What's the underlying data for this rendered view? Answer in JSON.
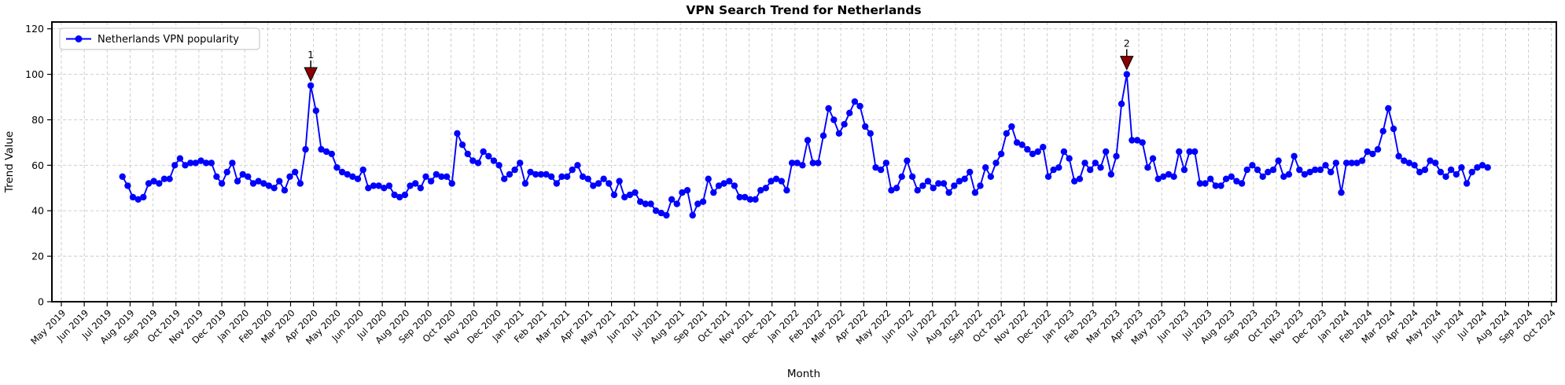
{
  "title": "VPN Search Trend for Netherlands",
  "xlabel": "Month",
  "ylabel": "Trend Value",
  "legend": {
    "label": "Netherlands VPN popularity"
  },
  "colors": {
    "line": "#0000ff",
    "marker": "#0000ff",
    "annotation": "#8b0000",
    "grid": "#c9c9c9",
    "spine": "#000000",
    "background": "#ffffff"
  },
  "chart_data": {
    "type": "line",
    "title": "VPN Search Trend for Netherlands",
    "xlabel": "Month",
    "ylabel": "Trend Value",
    "ylim": [
      0,
      123
    ],
    "yticks": [
      0,
      20,
      40,
      60,
      80,
      100,
      120
    ],
    "grid": true,
    "legend_position": "upper left",
    "x_tick_labels": [
      "May 2019",
      "Jun 2019",
      "Jul 2019",
      "Aug 2019",
      "Sep 2019",
      "Oct 2019",
      "Nov 2019",
      "Dec 2019",
      "Jan 2020",
      "Feb 2020",
      "Mar 2020",
      "Apr 2020",
      "May 2020",
      "Jun 2020",
      "Jul 2020",
      "Aug 2020",
      "Sep 2020",
      "Oct 2020",
      "Nov 2020",
      "Dec 2020",
      "Jan 2021",
      "Feb 2021",
      "Mar 2021",
      "Apr 2021",
      "May 2021",
      "Jun 2021",
      "Jul 2021",
      "Aug 2021",
      "Sep 2021",
      "Oct 2021",
      "Nov 2021",
      "Dec 2021",
      "Jan 2022",
      "Feb 2022",
      "Mar 2022",
      "Apr 2022",
      "May 2022",
      "Jun 2022",
      "Jul 2022",
      "Aug 2022",
      "Sep 2022",
      "Oct 2022",
      "Nov 2022",
      "Dec 2022",
      "Jan 2023",
      "Feb 2023",
      "Mar 2023",
      "Apr 2023",
      "May 2023",
      "Jun 2023",
      "Jul 2023",
      "Aug 2023",
      "Sep 2023",
      "Oct 2023",
      "Nov 2023",
      "Dec 2023",
      "Jan 2024",
      "Feb 2024",
      "Mar 2024",
      "Apr 2024",
      "May 2024",
      "Jun 2024",
      "Jul 2024",
      "Aug 2024",
      "Sep 2024",
      "Oct 2024"
    ],
    "series": [
      {
        "name": "Netherlands VPN popularity",
        "color": "#0000ff",
        "marker": "circle",
        "x_start_label": "Jul 2019",
        "x_end_label": "Jul 2024",
        "frequency": "weekly",
        "values": [
          55,
          51,
          46,
          45,
          46,
          52,
          53,
          52,
          54,
          54,
          60,
          63,
          60,
          61,
          61,
          62,
          61,
          61,
          55,
          52,
          57,
          61,
          53,
          56,
          55,
          52,
          53,
          52,
          51,
          50,
          53,
          49,
          55,
          57,
          52,
          67,
          95,
          84,
          67,
          66,
          65,
          59,
          57,
          56,
          55,
          54,
          58,
          50,
          51,
          51,
          50,
          51,
          47,
          46,
          47,
          51,
          52,
          50,
          55,
          53,
          56,
          55,
          55,
          52,
          74,
          69,
          65,
          62,
          61,
          66,
          64,
          62,
          60,
          54,
          56,
          58,
          61,
          52,
          57,
          56,
          56,
          56,
          55,
          52,
          55,
          55,
          58,
          60,
          55,
          54,
          51,
          52,
          54,
          52,
          47,
          53,
          46,
          47,
          48,
          44,
          43,
          43,
          40,
          39,
          38,
          45,
          43,
          48,
          49,
          38,
          43,
          44,
          54,
          48,
          51,
          52,
          53,
          51,
          46,
          46,
          45,
          45,
          49,
          50,
          53,
          54,
          53,
          49,
          61,
          61,
          60,
          71,
          61,
          61,
          73,
          85,
          80,
          74,
          78,
          83,
          88,
          86,
          77,
          74,
          59,
          58,
          61,
          49,
          50,
          55,
          62,
          55,
          49,
          51,
          53,
          50,
          52,
          52,
          48,
          51,
          53,
          54,
          57,
          48,
          51,
          59,
          55,
          61,
          65,
          74,
          77,
          70,
          69,
          67,
          65,
          66,
          68,
          55,
          58,
          59,
          66,
          63,
          53,
          54,
          61,
          58,
          61,
          59,
          66,
          56,
          64,
          87,
          100,
          71,
          71,
          70,
          59,
          63,
          54,
          55,
          56,
          55,
          66,
          58,
          66,
          66,
          52,
          52,
          54,
          51,
          51,
          54,
          55,
          53,
          52,
          58,
          60,
          58,
          55,
          57,
          58,
          62,
          55,
          56,
          64,
          58,
          56,
          57,
          58,
          58,
          60,
          57,
          61,
          48,
          61,
          61,
          61,
          62,
          66,
          65,
          67,
          75,
          85,
          76,
          64,
          62,
          61,
          60,
          57,
          58,
          62,
          61,
          57,
          55,
          58,
          56,
          59,
          52,
          57,
          59,
          60,
          59
        ]
      }
    ],
    "annotations": [
      {
        "label": "1",
        "index": 36,
        "value": 95,
        "color": "#8b0000"
      },
      {
        "label": "2",
        "index": 192,
        "value": 100,
        "color": "#8b0000"
      }
    ]
  }
}
